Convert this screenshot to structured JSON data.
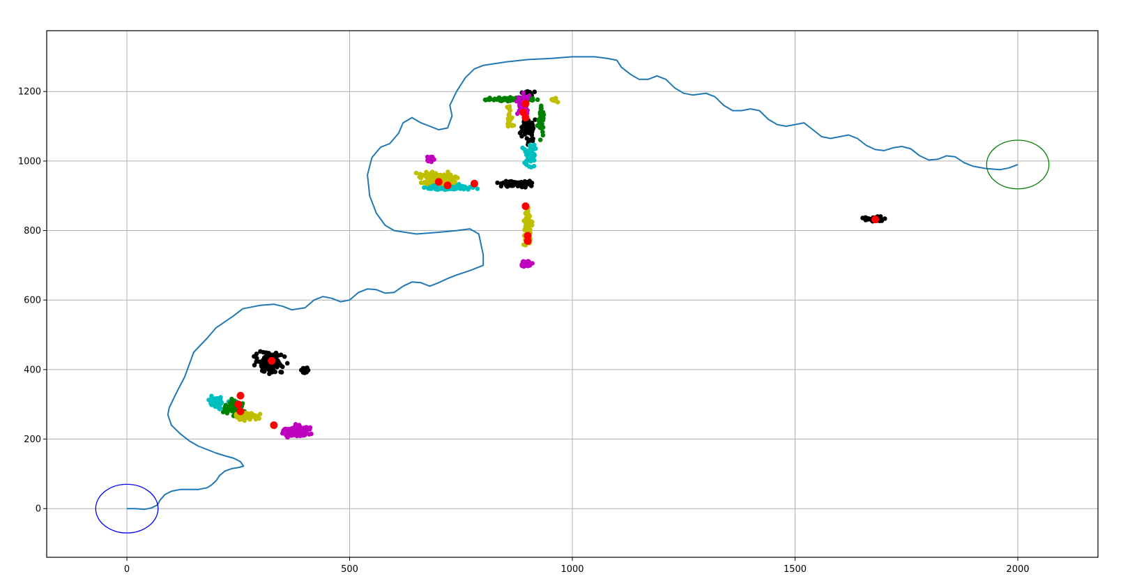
{
  "chart_data": {
    "type": "scatter",
    "title": "",
    "xlabel": "",
    "ylabel": "",
    "xlim": [
      -180,
      2180
    ],
    "ylim": [
      -140,
      1375
    ],
    "grid": true,
    "x_ticks": [
      0,
      500,
      1000,
      1500,
      2000
    ],
    "y_ticks": [
      0,
      200,
      400,
      600,
      800,
      1000,
      1200
    ],
    "path": {
      "color": "#1f77b4",
      "points": [
        [
          0,
          0
        ],
        [
          20,
          0
        ],
        [
          40,
          -2
        ],
        [
          55,
          2
        ],
        [
          68,
          10
        ],
        [
          75,
          25
        ],
        [
          85,
          40
        ],
        [
          100,
          50
        ],
        [
          120,
          55
        ],
        [
          140,
          55
        ],
        [
          160,
          55
        ],
        [
          180,
          60
        ],
        [
          190,
          68
        ],
        [
          200,
          80
        ],
        [
          208,
          95
        ],
        [
          220,
          108
        ],
        [
          235,
          115
        ],
        [
          250,
          118
        ],
        [
          262,
          122
        ],
        [
          255,
          135
        ],
        [
          240,
          145
        ],
        [
          220,
          152
        ],
        [
          200,
          160
        ],
        [
          180,
          170
        ],
        [
          160,
          180
        ],
        [
          140,
          195
        ],
        [
          120,
          215
        ],
        [
          100,
          240
        ],
        [
          92,
          270
        ],
        [
          95,
          290
        ],
        [
          110,
          330
        ],
        [
          130,
          380
        ],
        [
          150,
          450
        ],
        [
          180,
          490
        ],
        [
          200,
          520
        ],
        [
          240,
          555
        ],
        [
          260,
          575
        ],
        [
          300,
          585
        ],
        [
          330,
          588
        ],
        [
          350,
          582
        ],
        [
          370,
          572
        ],
        [
          400,
          578
        ],
        [
          420,
          600
        ],
        [
          440,
          610
        ],
        [
          460,
          605
        ],
        [
          480,
          595
        ],
        [
          500,
          600
        ],
        [
          520,
          622
        ],
        [
          540,
          632
        ],
        [
          560,
          630
        ],
        [
          580,
          620
        ],
        [
          600,
          622
        ],
        [
          620,
          640
        ],
        [
          640,
          652
        ],
        [
          660,
          650
        ],
        [
          680,
          640
        ],
        [
          700,
          650
        ],
        [
          720,
          662
        ],
        [
          740,
          672
        ],
        [
          770,
          685
        ],
        [
          800,
          700
        ],
        [
          800,
          730
        ],
        [
          790,
          790
        ],
        [
          770,
          805
        ],
        [
          740,
          800
        ],
        [
          700,
          795
        ],
        [
          650,
          790
        ],
        [
          600,
          800
        ],
        [
          580,
          815
        ],
        [
          560,
          850
        ],
        [
          545,
          900
        ],
        [
          540,
          960
        ],
        [
          550,
          1010
        ],
        [
          570,
          1040
        ],
        [
          590,
          1050
        ],
        [
          610,
          1080
        ],
        [
          620,
          1110
        ],
        [
          640,
          1125
        ],
        [
          660,
          1110
        ],
        [
          680,
          1100
        ],
        [
          700,
          1090
        ],
        [
          720,
          1095
        ],
        [
          730,
          1130
        ],
        [
          725,
          1160
        ],
        [
          740,
          1200
        ],
        [
          760,
          1240
        ],
        [
          780,
          1265
        ],
        [
          800,
          1275
        ],
        [
          850,
          1285
        ],
        [
          900,
          1292
        ],
        [
          950,
          1295
        ],
        [
          1000,
          1300
        ],
        [
          1050,
          1300
        ],
        [
          1080,
          1295
        ],
        [
          1100,
          1290
        ],
        [
          1110,
          1270
        ],
        [
          1130,
          1250
        ],
        [
          1150,
          1235
        ],
        [
          1170,
          1235
        ],
        [
          1190,
          1245
        ],
        [
          1210,
          1235
        ],
        [
          1230,
          1210
        ],
        [
          1250,
          1195
        ],
        [
          1270,
          1190
        ],
        [
          1300,
          1195
        ],
        [
          1320,
          1185
        ],
        [
          1340,
          1160
        ],
        [
          1360,
          1145
        ],
        [
          1380,
          1145
        ],
        [
          1400,
          1150
        ],
        [
          1420,
          1145
        ],
        [
          1440,
          1120
        ],
        [
          1460,
          1105
        ],
        [
          1480,
          1100
        ],
        [
          1500,
          1105
        ],
        [
          1520,
          1110
        ],
        [
          1540,
          1090
        ],
        [
          1560,
          1070
        ],
        [
          1580,
          1065
        ],
        [
          1600,
          1070
        ],
        [
          1620,
          1075
        ],
        [
          1640,
          1065
        ],
        [
          1660,
          1045
        ],
        [
          1680,
          1033
        ],
        [
          1700,
          1030
        ],
        [
          1720,
          1038
        ],
        [
          1740,
          1042
        ],
        [
          1760,
          1035
        ],
        [
          1780,
          1015
        ],
        [
          1800,
          1003
        ],
        [
          1820,
          1005
        ],
        [
          1840,
          1015
        ],
        [
          1860,
          1012
        ],
        [
          1880,
          995
        ],
        [
          1900,
          985
        ],
        [
          1930,
          978
        ],
        [
          1960,
          975
        ],
        [
          1980,
          980
        ],
        [
          2000,
          990
        ]
      ]
    },
    "circles": [
      {
        "center": [
          0,
          0
        ],
        "radius": 70,
        "color": "#0000ff"
      },
      {
        "center": [
          2000,
          990
        ],
        "radius": 70,
        "color": "#008000"
      }
    ],
    "series": [
      {
        "color": "#000000",
        "clusters": [
          {
            "center": [
              320,
              420
            ],
            "spread": [
              45,
              40
            ],
            "count": 120
          },
          {
            "center": [
              400,
              400
            ],
            "spread": [
              15,
              10
            ],
            "count": 20
          },
          {
            "center": [
              870,
              935
            ],
            "spread": [
              50,
              12
            ],
            "count": 90
          },
          {
            "center": [
              900,
              1090
            ],
            "spread": [
              20,
              60
            ],
            "count": 50
          },
          {
            "center": [
              900,
              1195
            ],
            "spread": [
              25,
              10
            ],
            "count": 15
          },
          {
            "center": [
              1680,
              833
            ],
            "spread": [
              35,
              10
            ],
            "count": 40
          }
        ]
      },
      {
        "color": "#00bfbf",
        "clusters": [
          {
            "center": [
              200,
              305
            ],
            "spread": [
              20,
              22
            ],
            "count": 70
          },
          {
            "center": [
              240,
              290
            ],
            "spread": [
              25,
              25
            ],
            "count": 25
          },
          {
            "center": [
              720,
              925
            ],
            "spread": [
              80,
              12
            ],
            "count": 110
          },
          {
            "center": [
              905,
              1010
            ],
            "spread": [
              20,
              50
            ],
            "count": 40
          }
        ]
      },
      {
        "color": "#008000",
        "clusters": [
          {
            "center": [
              240,
              290
            ],
            "spread": [
              30,
              30
            ],
            "count": 60
          },
          {
            "center": [
              860,
              1178
            ],
            "spread": [
              75,
              7
            ],
            "count": 80
          },
          {
            "center": [
              930,
              1120
            ],
            "spread": [
              10,
              70
            ],
            "count": 40
          }
        ]
      },
      {
        "color": "#bfbf00",
        "clusters": [
          {
            "center": [
              270,
              265
            ],
            "spread": [
              35,
              18
            ],
            "count": 50
          },
          {
            "center": [
              700,
              950
            ],
            "spread": [
              60,
              25
            ],
            "count": 130
          },
          {
            "center": [
              900,
              810
            ],
            "spread": [
              12,
              70
            ],
            "count": 70
          },
          {
            "center": [
              860,
              1120
            ],
            "spread": [
              15,
              50
            ],
            "count": 20
          },
          {
            "center": [
              960,
              1175
            ],
            "spread": [
              15,
              10
            ],
            "count": 10
          }
        ]
      },
      {
        "color": "#bf00bf",
        "clusters": [
          {
            "center": [
              380,
              225
            ],
            "spread": [
              40,
              25
            ],
            "count": 100
          },
          {
            "center": [
              895,
              705
            ],
            "spread": [
              18,
              12
            ],
            "count": 40
          },
          {
            "center": [
              890,
              1160
            ],
            "spread": [
              18,
              45
            ],
            "count": 70
          },
          {
            "center": [
              680,
              1005
            ],
            "spread": [
              15,
              15
            ],
            "count": 15
          }
        ]
      }
    ],
    "centroids": {
      "color": "#ff0000",
      "points": [
        [
          325,
          425
        ],
        [
          255,
          325
        ],
        [
          250,
          300
        ],
        [
          255,
          280
        ],
        [
          330,
          240
        ],
        [
          700,
          940
        ],
        [
          720,
          930
        ],
        [
          780,
          935
        ],
        [
          895,
          870
        ],
        [
          900,
          785
        ],
        [
          900,
          770
        ],
        [
          895,
          1165
        ],
        [
          890,
          1140
        ],
        [
          895,
          1125
        ],
        [
          1680,
          832
        ]
      ]
    }
  }
}
